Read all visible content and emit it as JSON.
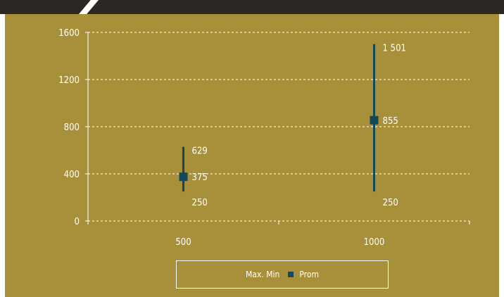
{
  "chart_data": {
    "type": "scatter",
    "title": "",
    "xlabel": "",
    "ylabel": "",
    "categories": [
      "500",
      "1000"
    ],
    "ylim": [
      0,
      1600
    ],
    "yticks": [
      0,
      400,
      800,
      1200,
      1600
    ],
    "grid": true,
    "legend_placement": "bottom",
    "series": [
      {
        "name": "Max. Min",
        "kind": "range",
        "min": [
          250,
          250
        ],
        "max": [
          629,
          1501
        ],
        "min_labels": [
          "250",
          "250"
        ],
        "max_labels": [
          "629",
          "1 501"
        ]
      },
      {
        "name": "Prom",
        "kind": "marker",
        "values": [
          375,
          855
        ],
        "labels": [
          "375",
          "855"
        ]
      }
    ],
    "legend": [
      "Max. Min",
      "Prom"
    ]
  },
  "colors": {
    "background": "#a8903a",
    "marker": "#124a5c",
    "text": "#ffffff",
    "grid": "#ffffff",
    "topbar": "#2b2723"
  }
}
